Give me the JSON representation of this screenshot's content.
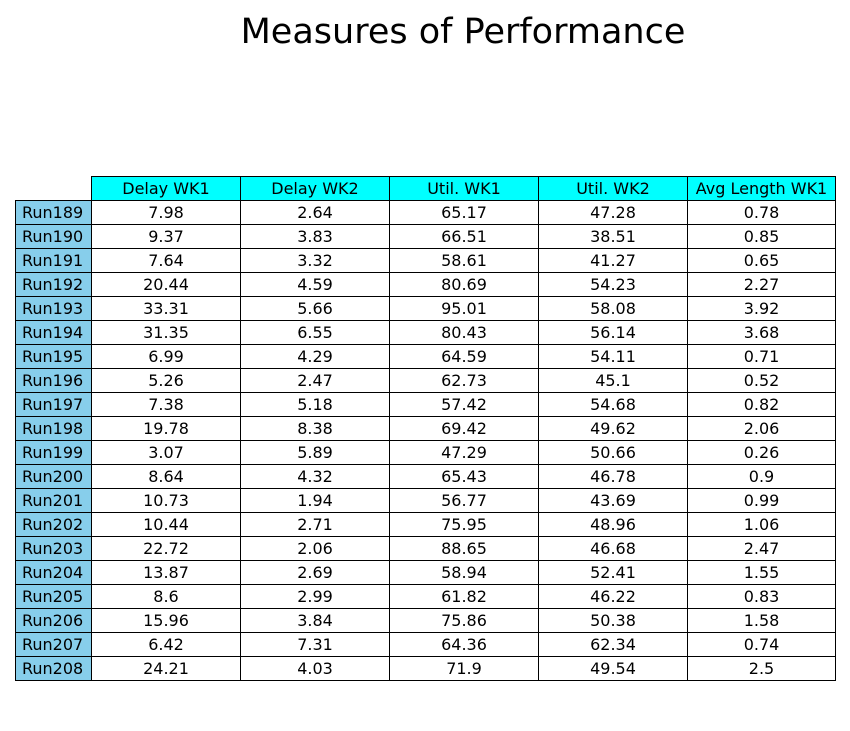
{
  "chart_data": {
    "type": "table",
    "title": "Measures of Performance",
    "header_color": "#00ffff",
    "row_header_color": "#87ceeb",
    "columns": [
      "Delay WK1",
      "Delay WK2",
      "Util. WK1",
      "Util. WK2",
      "Avg Length WK1"
    ],
    "rows": [
      {
        "label": "Run189",
        "values": [
          "7.98",
          "2.64",
          "65.17",
          "47.28",
          "0.78"
        ]
      },
      {
        "label": "Run190",
        "values": [
          "9.37",
          "3.83",
          "66.51",
          "38.51",
          "0.85"
        ]
      },
      {
        "label": "Run191",
        "values": [
          "7.64",
          "3.32",
          "58.61",
          "41.27",
          "0.65"
        ]
      },
      {
        "label": "Run192",
        "values": [
          "20.44",
          "4.59",
          "80.69",
          "54.23",
          "2.27"
        ]
      },
      {
        "label": "Run193",
        "values": [
          "33.31",
          "5.66",
          "95.01",
          "58.08",
          "3.92"
        ]
      },
      {
        "label": "Run194",
        "values": [
          "31.35",
          "6.55",
          "80.43",
          "56.14",
          "3.68"
        ]
      },
      {
        "label": "Run195",
        "values": [
          "6.99",
          "4.29",
          "64.59",
          "54.11",
          "0.71"
        ]
      },
      {
        "label": "Run196",
        "values": [
          "5.26",
          "2.47",
          "62.73",
          "45.1",
          "0.52"
        ]
      },
      {
        "label": "Run197",
        "values": [
          "7.38",
          "5.18",
          "57.42",
          "54.68",
          "0.82"
        ]
      },
      {
        "label": "Run198",
        "values": [
          "19.78",
          "8.38",
          "69.42",
          "49.62",
          "2.06"
        ]
      },
      {
        "label": "Run199",
        "values": [
          "3.07",
          "5.89",
          "47.29",
          "50.66",
          "0.26"
        ]
      },
      {
        "label": "Run200",
        "values": [
          "8.64",
          "4.32",
          "65.43",
          "46.78",
          "0.9"
        ]
      },
      {
        "label": "Run201",
        "values": [
          "10.73",
          "1.94",
          "56.77",
          "43.69",
          "0.99"
        ]
      },
      {
        "label": "Run202",
        "values": [
          "10.44",
          "2.71",
          "75.95",
          "48.96",
          "1.06"
        ]
      },
      {
        "label": "Run203",
        "values": [
          "22.72",
          "2.06",
          "88.65",
          "46.68",
          "2.47"
        ]
      },
      {
        "label": "Run204",
        "values": [
          "13.87",
          "2.69",
          "58.94",
          "52.41",
          "1.55"
        ]
      },
      {
        "label": "Run205",
        "values": [
          "8.6",
          "2.99",
          "61.82",
          "46.22",
          "0.83"
        ]
      },
      {
        "label": "Run206",
        "values": [
          "15.96",
          "3.84",
          "75.86",
          "50.38",
          "1.58"
        ]
      },
      {
        "label": "Run207",
        "values": [
          "6.42",
          "7.31",
          "64.36",
          "62.34",
          "0.74"
        ]
      },
      {
        "label": "Run208",
        "values": [
          "24.21",
          "4.03",
          "71.9",
          "49.54",
          "2.5"
        ]
      }
    ]
  }
}
